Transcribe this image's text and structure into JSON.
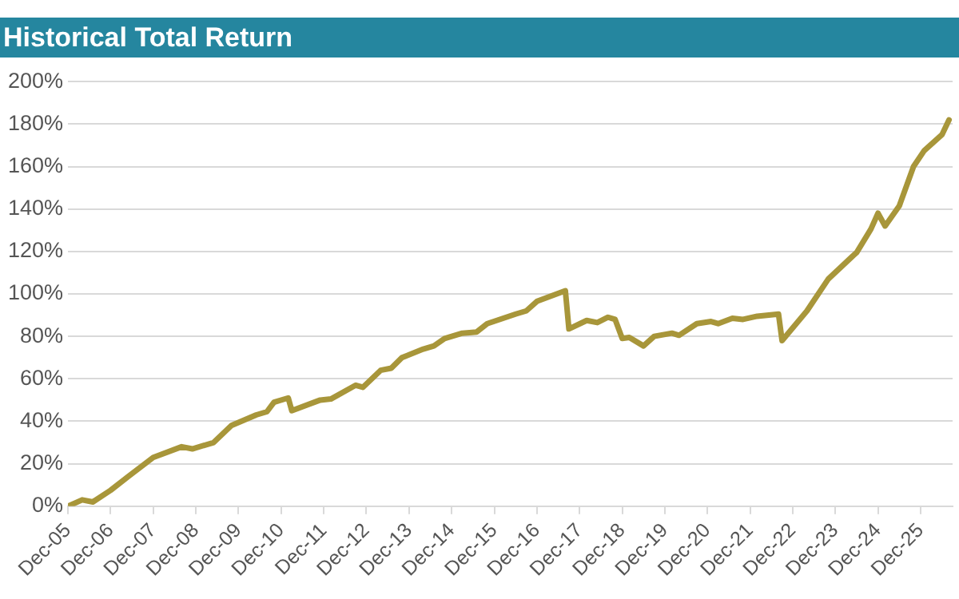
{
  "chart_data": {
    "type": "line",
    "title": "Historical Total Return",
    "x": [
      "2005-12",
      "2006-04",
      "2006-07",
      "2006-12",
      "2007-05",
      "2007-12",
      "2008-08",
      "2008-11",
      "2009-05",
      "2009-10",
      "2010-05",
      "2010-08",
      "2010-10",
      "2011-02",
      "2011-03",
      "2011-11",
      "2012-02",
      "2012-09",
      "2012-11",
      "2013-04",
      "2013-07",
      "2013-10",
      "2014-04",
      "2014-07",
      "2014-10",
      "2015-03",
      "2015-07",
      "2015-10",
      "2016-06",
      "2016-09",
      "2016-12",
      "2017-08",
      "2017-09",
      "2018-02",
      "2018-05",
      "2018-08",
      "2018-10",
      "2018-12",
      "2019-02",
      "2019-06",
      "2019-09",
      "2020-02",
      "2020-04",
      "2020-09",
      "2021-01",
      "2021-03",
      "2021-07",
      "2021-10",
      "2022-02",
      "2022-08",
      "2022-09",
      "2023-04",
      "2023-10",
      "2024-05",
      "2024-06",
      "2024-10",
      "2024-12",
      "2025-02",
      "2025-06",
      "2025-10",
      "2026-01",
      "2026-06",
      "2026-08"
    ],
    "series": [
      {
        "color": "#a8963a",
        "values": [
          0,
          3,
          2,
          7.5,
          14,
          23,
          28,
          27,
          30,
          38,
          43,
          44.5,
          49,
          51,
          45,
          50,
          50.5,
          57,
          56,
          64,
          65,
          70,
          74,
          75.5,
          79,
          81.5,
          82,
          86,
          90.5,
          92,
          96.5,
          101.5,
          83.5,
          87.5,
          86.5,
          89,
          88,
          79,
          79.5,
          75.5,
          80,
          81.5,
          80.5,
          86,
          87,
          86,
          88.5,
          88,
          89.5,
          90.5,
          78,
          92,
          107,
          118,
          119.5,
          130.5,
          138,
          132,
          141.5,
          160,
          167.5,
          175,
          182
        ]
      }
    ],
    "xlim": [
      "2005-12",
      "2026-09"
    ],
    "xticks": [
      {
        "value": "2005-12",
        "label": "Dec-05"
      },
      {
        "value": "2006-12",
        "label": "Dec-06"
      },
      {
        "value": "2007-12",
        "label": "Dec-07"
      },
      {
        "value": "2008-12",
        "label": "Dec-08"
      },
      {
        "value": "2009-12",
        "label": "Dec-09"
      },
      {
        "value": "2010-12",
        "label": "Dec-10"
      },
      {
        "value": "2011-12",
        "label": "Dec-11"
      },
      {
        "value": "2012-12",
        "label": "Dec-12"
      },
      {
        "value": "2013-12",
        "label": "Dec-13"
      },
      {
        "value": "2014-12",
        "label": "Dec-14"
      },
      {
        "value": "2015-12",
        "label": "Dec-15"
      },
      {
        "value": "2016-12",
        "label": "Dec-16"
      },
      {
        "value": "2017-12",
        "label": "Dec-17"
      },
      {
        "value": "2018-12",
        "label": "Dec-18"
      },
      {
        "value": "2019-12",
        "label": "Dec-19"
      },
      {
        "value": "2020-12",
        "label": "Dec-20"
      },
      {
        "value": "2021-12",
        "label": "Dec-21"
      },
      {
        "value": "2022-12",
        "label": "Dec-22"
      },
      {
        "value": "2023-12",
        "label": "Dec-23"
      },
      {
        "value": "2024-12",
        "label": "Dec-24"
      },
      {
        "value": "2025-12",
        "label": "Dec-25"
      }
    ],
    "ylim": [
      0,
      200
    ],
    "yticks": [
      {
        "value": 0,
        "label": "0%"
      },
      {
        "value": 20,
        "label": "20%"
      },
      {
        "value": 40,
        "label": "40%"
      },
      {
        "value": 60,
        "label": "60%"
      },
      {
        "value": 80,
        "label": "80%"
      },
      {
        "value": 100,
        "label": "100%"
      },
      {
        "value": 120,
        "label": "120%"
      },
      {
        "value": 140,
        "label": "140%"
      },
      {
        "value": 160,
        "label": "160%"
      },
      {
        "value": 180,
        "label": "180%"
      },
      {
        "value": 200,
        "label": "200%"
      }
    ],
    "grid": "y",
    "legend": false,
    "marker": "none",
    "line_style": "solid"
  }
}
